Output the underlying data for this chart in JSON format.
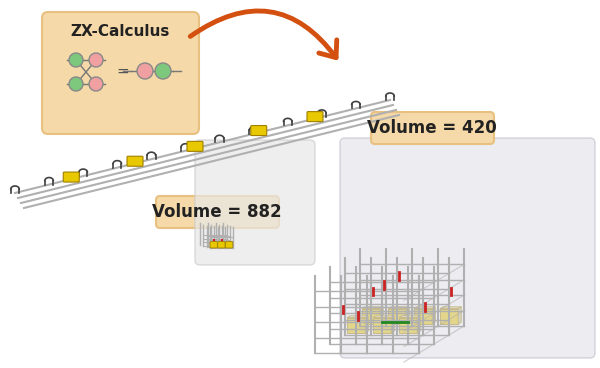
{
  "bg_color": "#ffffff",
  "zx_box_color": "#f5d9a8",
  "zx_box_edge": "#e8c080",
  "zx_title": "ZX-Calculus",
  "zx_title_size": 11,
  "green_color": "#7dc87d",
  "pink_color": "#f0a0a0",
  "arrow_color": "#d45010",
  "vol882_label": "Volume = 882",
  "vol420_label": "Volume = 420",
  "label_box_color": "#f5d9a8",
  "label_box_edge": "#e8c080",
  "label_fontsize": 12,
  "circuit_gray": "#b0b0b0",
  "circuit_dark": "#404040",
  "yellow_color": "#e8c800",
  "red_accent": "#cc2222",
  "green_accent": "#228822",
  "small_box_bg": "#e8e8e8",
  "large_box_bg": "#e0e0e8"
}
